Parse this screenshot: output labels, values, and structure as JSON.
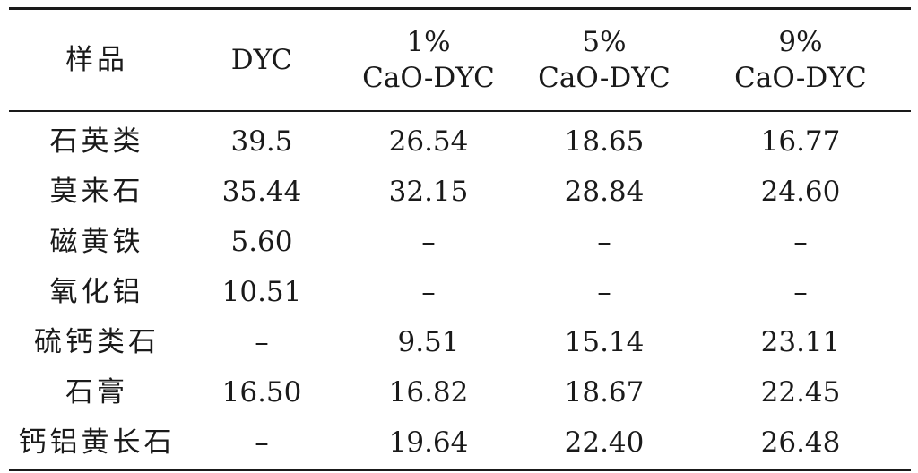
{
  "table": {
    "headers": {
      "sample": "样品",
      "dyc": "DYC",
      "cao1_top": "1%",
      "cao1_bottom": "CaO-DYC",
      "cao5_top": "5%",
      "cao5_bottom": "CaO-DYC",
      "cao9_top": "9%",
      "cao9_bottom": "CaO-DYC"
    },
    "rows": [
      {
        "name": "石英类",
        "dyc": "39.5",
        "cao1": "26.54",
        "cao5": "18.65",
        "cao9": "16.77"
      },
      {
        "name": "莫来石",
        "dyc": "35.44",
        "cao1": "32.15",
        "cao5": "28.84",
        "cao9": "24.60"
      },
      {
        "name": "磁黄铁",
        "dyc": "5.60",
        "cao1": "–",
        "cao5": "–",
        "cao9": "–"
      },
      {
        "name": "氧化铝",
        "dyc": "10.51",
        "cao1": "–",
        "cao5": "–",
        "cao9": "–"
      },
      {
        "name": "硫钙类石",
        "dyc": "–",
        "cao1": "9.51",
        "cao5": "15.14",
        "cao9": "23.11"
      },
      {
        "name": "石膏",
        "dyc": "16.50",
        "cao1": "16.82",
        "cao5": "18.67",
        "cao9": "22.45"
      },
      {
        "name": "钙铝黄长石",
        "dyc": "–",
        "cao1": "19.64",
        "cao5": "22.40",
        "cao9": "26.48"
      }
    ]
  }
}
